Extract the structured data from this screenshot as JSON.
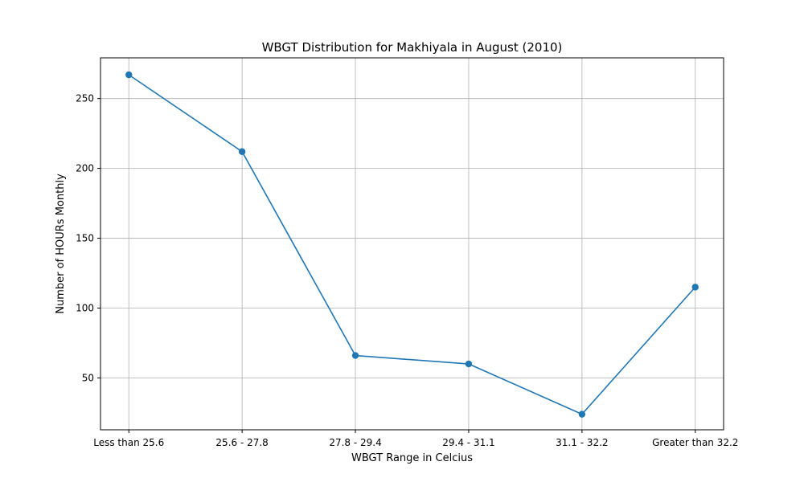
{
  "chart_data": {
    "type": "line",
    "title": "WBGT Distribution for Makhiyala in August (2010)",
    "xlabel": "WBGT Range in Celcius",
    "ylabel": "Number of HOURs Monthly",
    "categories": [
      "Less than 25.6",
      "25.6 - 27.8",
      "27.8 - 29.4",
      "29.4 - 31.1",
      "31.1 - 32.2",
      "Greater than 32.2"
    ],
    "series": [
      {
        "values": [
          267,
          212,
          66,
          60,
          24,
          115
        ]
      }
    ],
    "ylim": [
      12.85,
      279.15
    ],
    "yticks": [
      50,
      100,
      150,
      200,
      250
    ],
    "grid": true,
    "markers": true,
    "colors": {
      "line": "#1f77b4",
      "grid": "#b0b0b0"
    }
  }
}
